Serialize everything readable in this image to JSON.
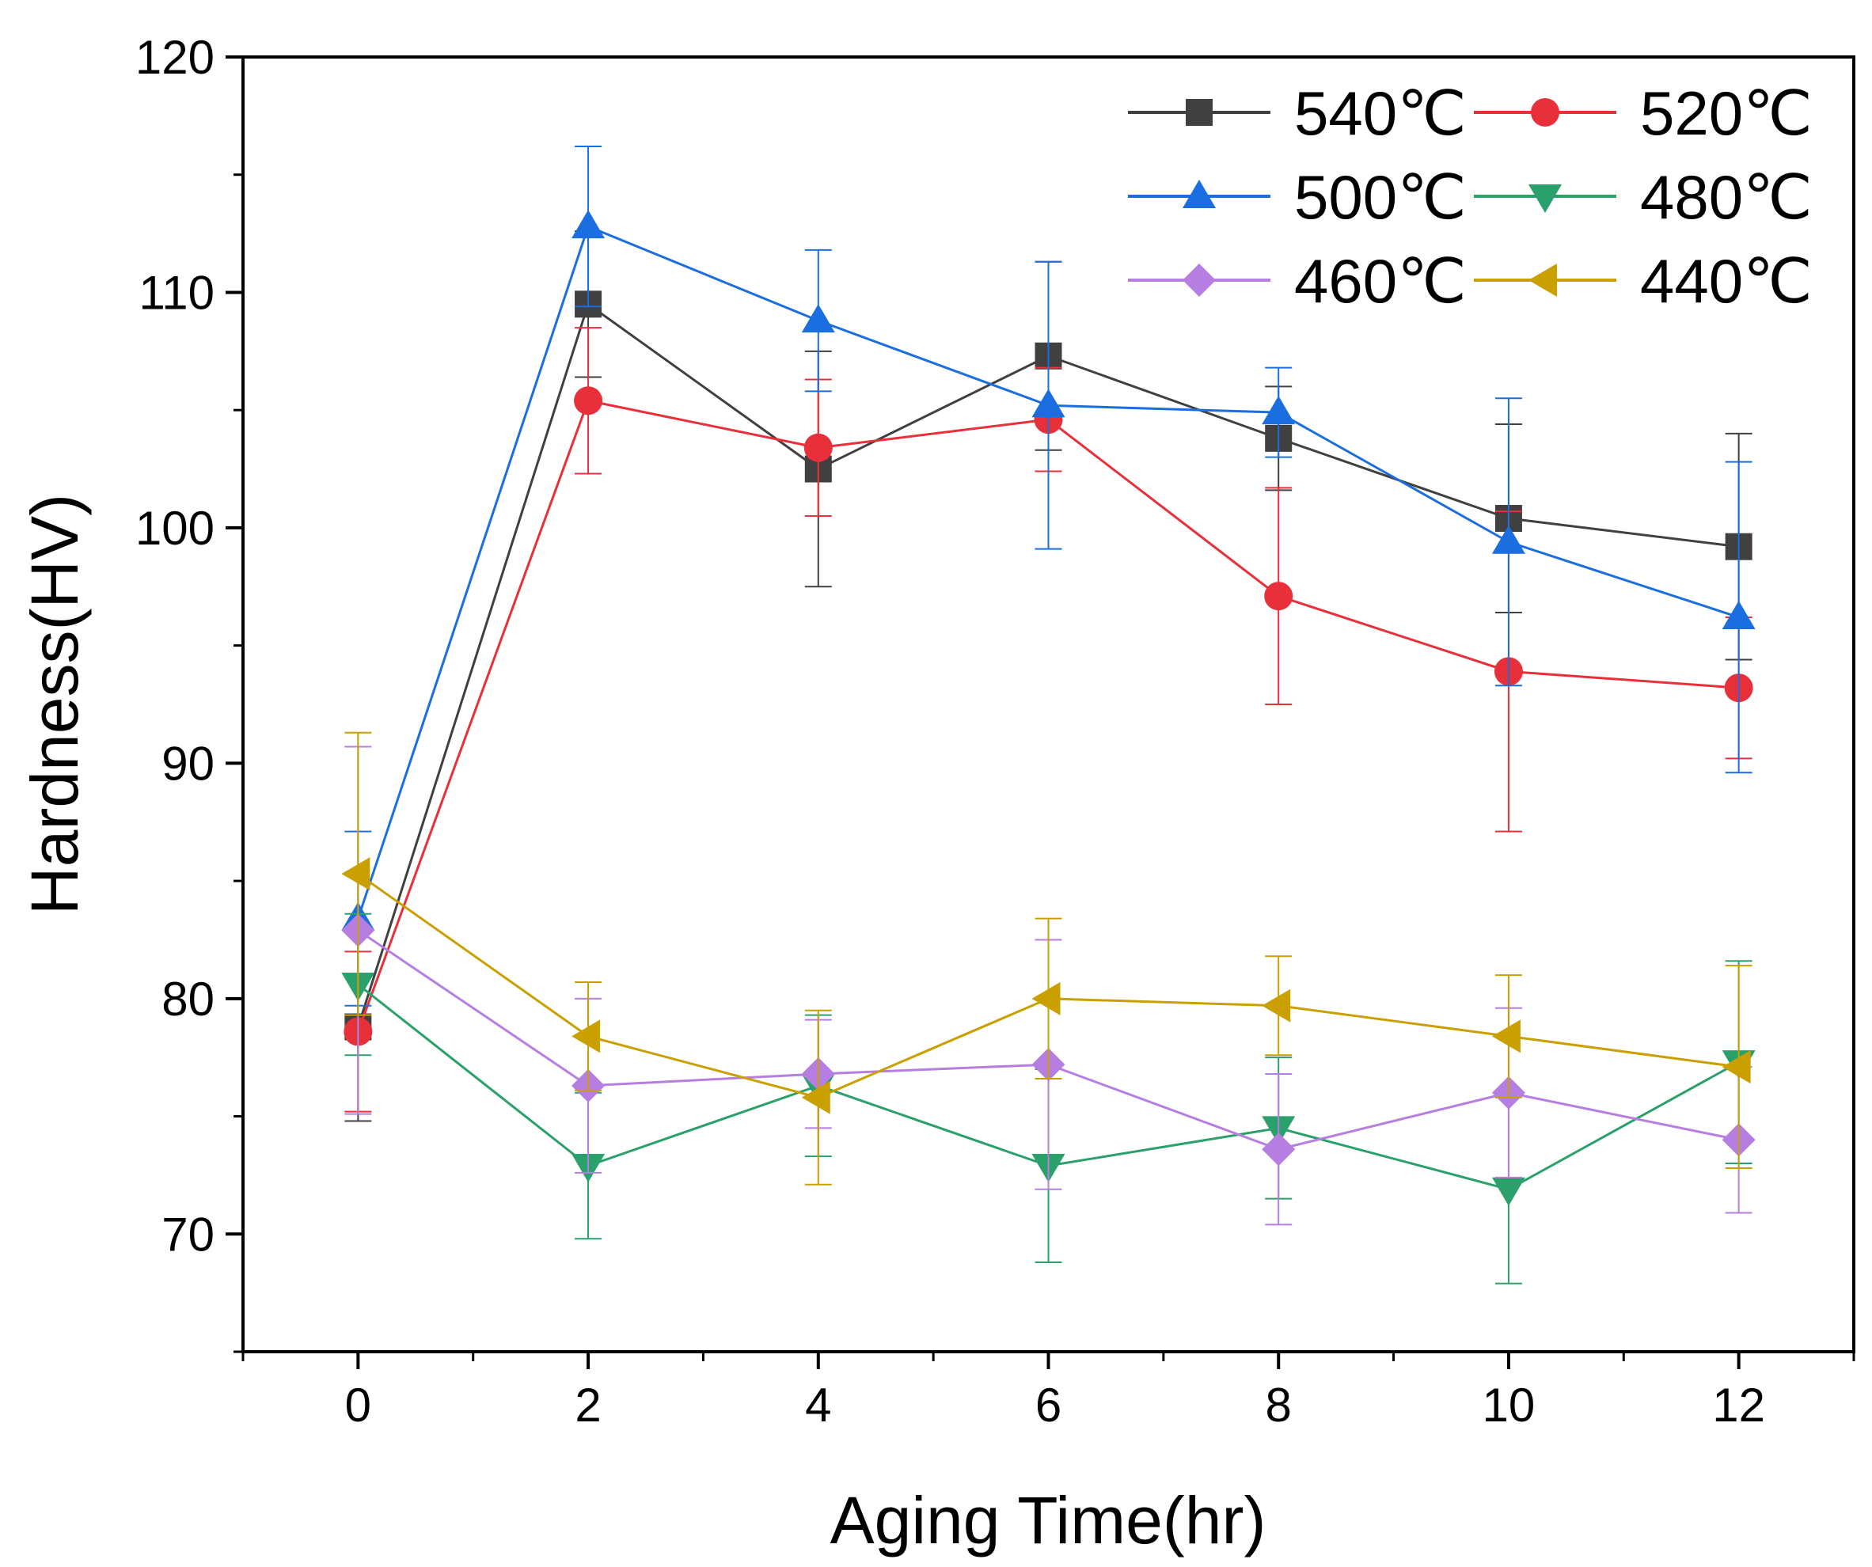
{
  "chart_data": {
    "type": "line",
    "title": "",
    "xlabel": "Aging Time(hr)",
    "ylabel": "Hardness(HV)",
    "xlim": [
      -1,
      13
    ],
    "ylim": [
      65,
      120
    ],
    "xticks": [
      0,
      2,
      4,
      6,
      8,
      10,
      12
    ],
    "yticks": [
      70,
      80,
      90,
      100,
      110,
      120
    ],
    "xtick_labels": [
      "0",
      "2",
      "4",
      "6",
      "8",
      "10",
      "12"
    ],
    "ytick_labels": [
      "70",
      "80",
      "90",
      "100",
      "110",
      "120"
    ],
    "grid": false,
    "legend_position": "top-right",
    "x": [
      0,
      2,
      4,
      6,
      8,
      10,
      12
    ],
    "series": [
      {
        "name": "540℃",
        "color": "#404040",
        "marker": "square",
        "values": [
          78.8,
          109.5,
          102.5,
          107.3,
          103.8,
          100.4,
          99.2
        ],
        "errors": [
          4.0,
          3.1,
          5.0,
          4.0,
          2.2,
          4.0,
          4.8
        ]
      },
      {
        "name": "520℃",
        "color": "#e8303a",
        "marker": "circle",
        "values": [
          78.6,
          105.4,
          103.4,
          104.6,
          97.1,
          93.9,
          93.2
        ],
        "errors": [
          3.4,
          3.1,
          2.9,
          2.2,
          4.6,
          6.8,
          3.0
        ]
      },
      {
        "name": "500℃",
        "color": "#1a6ee0",
        "marker": "triangle-up",
        "values": [
          83.4,
          112.8,
          108.8,
          105.2,
          104.9,
          99.4,
          96.2
        ],
        "errors": [
          3.7,
          3.4,
          3.0,
          6.1,
          1.9,
          6.1,
          6.6
        ]
      },
      {
        "name": "480℃",
        "color": "#2aa06a",
        "marker": "triangle-down",
        "values": [
          80.6,
          72.9,
          76.3,
          72.9,
          74.5,
          71.9,
          77.3
        ],
        "errors": [
          3.0,
          3.1,
          3.0,
          4.1,
          3.0,
          4.0,
          4.3
        ]
      },
      {
        "name": "460℃",
        "color": "#b57ee0",
        "marker": "diamond",
        "values": [
          82.9,
          76.3,
          76.8,
          77.2,
          73.6,
          76.0,
          74.0
        ],
        "errors": [
          7.8,
          3.7,
          2.3,
          5.3,
          3.2,
          3.6,
          3.1
        ]
      },
      {
        "name": "440℃",
        "color": "#c9a000",
        "marker": "triangle-left",
        "values": [
          85.3,
          78.4,
          75.8,
          80.0,
          79.7,
          78.4,
          77.1
        ],
        "errors": [
          6.0,
          2.3,
          3.7,
          3.4,
          2.1,
          2.6,
          4.3
        ]
      }
    ]
  }
}
